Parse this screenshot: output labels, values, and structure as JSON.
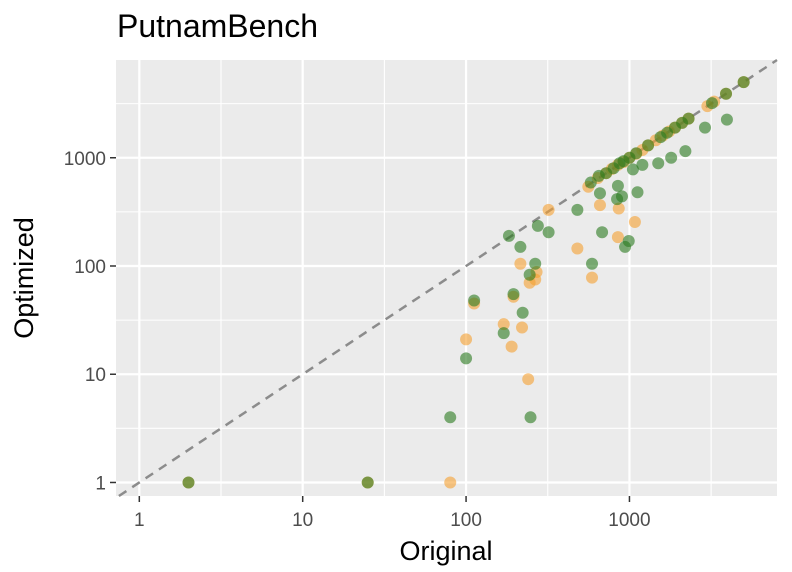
{
  "chart_data": {
    "type": "scatter",
    "title": "PutnamBench",
    "xlabel": "Original",
    "ylabel": "Optimized",
    "x_scale": "log10",
    "y_scale": "log10",
    "xlim": [
      0.72,
      8000
    ],
    "ylim": [
      0.75,
      8000
    ],
    "x_ticks": [
      1,
      10,
      100,
      1000
    ],
    "x_tick_labels": [
      "1",
      "10",
      "100",
      "1000"
    ],
    "y_ticks": [
      1,
      10,
      100,
      1000
    ],
    "y_tick_labels": [
      "1",
      "10",
      "100",
      "1000"
    ],
    "grid": true,
    "reference_line": "y = x (dashed)",
    "legend": "none",
    "colors": {
      "panel_bg": "#ebebeb",
      "grid": "#ffffff",
      "orange_series": "#f5a030",
      "green_series": "#2a7a1e",
      "reference_line": "#8c8c8c"
    },
    "series": [
      {
        "color": "#f5a030",
        "points": [
          [
            2,
            1
          ],
          [
            25,
            1
          ],
          [
            80,
            1
          ],
          [
            100,
            21
          ],
          [
            112,
            45
          ],
          [
            170,
            29
          ],
          [
            190,
            18
          ],
          [
            195,
            52
          ],
          [
            215,
            105
          ],
          [
            220,
            27
          ],
          [
            240,
            9
          ],
          [
            245,
            70
          ],
          [
            265,
            75
          ],
          [
            270,
            88
          ],
          [
            320,
            330
          ],
          [
            480,
            145
          ],
          [
            590,
            78
          ],
          [
            660,
            365
          ],
          [
            850,
            185
          ],
          [
            860,
            340
          ],
          [
            1080,
            255
          ],
          [
            560,
            540
          ],
          [
            640,
            650
          ],
          [
            720,
            720
          ],
          [
            780,
            790
          ],
          [
            850,
            860
          ],
          [
            920,
            910
          ],
          [
            1000,
            1000
          ],
          [
            1100,
            1090
          ],
          [
            1200,
            1180
          ],
          [
            1300,
            1300
          ],
          [
            1450,
            1450
          ],
          [
            1600,
            1600
          ],
          [
            1750,
            1750
          ],
          [
            1900,
            1900
          ],
          [
            2100,
            2100
          ],
          [
            2300,
            2300
          ],
          [
            3000,
            3000
          ],
          [
            3300,
            3300
          ],
          [
            3900,
            3900
          ],
          [
            5000,
            5000
          ]
        ]
      },
      {
        "color": "#2a7a1e",
        "points": [
          [
            2,
            1
          ],
          [
            25,
            1
          ],
          [
            80,
            4
          ],
          [
            100,
            14
          ],
          [
            112,
            48
          ],
          [
            170,
            24
          ],
          [
            183,
            190
          ],
          [
            195,
            55
          ],
          [
            215,
            150
          ],
          [
            222,
            37
          ],
          [
            245,
            83
          ],
          [
            248,
            4
          ],
          [
            265,
            105
          ],
          [
            275,
            235
          ],
          [
            320,
            205
          ],
          [
            480,
            330
          ],
          [
            580,
            590
          ],
          [
            590,
            105
          ],
          [
            650,
            680
          ],
          [
            660,
            470
          ],
          [
            680,
            205
          ],
          [
            720,
            720
          ],
          [
            800,
            800
          ],
          [
            840,
            415
          ],
          [
            850,
            550
          ],
          [
            870,
            890
          ],
          [
            900,
            440
          ],
          [
            920,
            930
          ],
          [
            940,
            150
          ],
          [
            990,
            170
          ],
          [
            1000,
            1000
          ],
          [
            1050,
            780
          ],
          [
            1100,
            1100
          ],
          [
            1120,
            480
          ],
          [
            1200,
            860
          ],
          [
            1300,
            1300
          ],
          [
            1500,
            890
          ],
          [
            1550,
            1550
          ],
          [
            1700,
            1700
          ],
          [
            1800,
            1000
          ],
          [
            1900,
            1900
          ],
          [
            2100,
            2100
          ],
          [
            2200,
            1150
          ],
          [
            2300,
            2300
          ],
          [
            2900,
            1900
          ],
          [
            3200,
            3200
          ],
          [
            3900,
            3900
          ],
          [
            3950,
            2250
          ],
          [
            5000,
            5000
          ]
        ]
      }
    ]
  }
}
